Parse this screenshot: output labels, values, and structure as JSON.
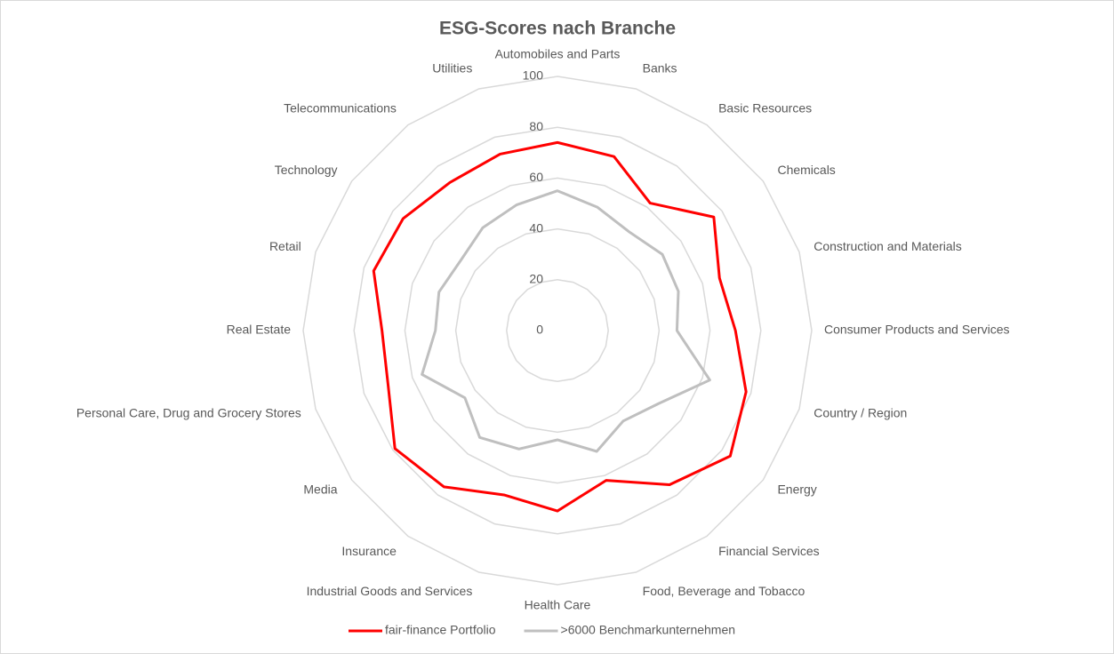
{
  "chart_data": {
    "type": "radar",
    "title": "ESG-Scores nach Branche",
    "categories": [
      "Automobiles and Parts",
      "Banks",
      "Basic Resources",
      "Chemicals",
      "Construction and Materials",
      "Consumer Products and Services",
      "Country / Region",
      "Energy",
      "Financial Services",
      "Food, Beverage and Tobacco",
      "Health Care",
      "Industrial Goods and Services",
      "Insurance",
      "Media",
      "Personal Care, Drug and Grocery Stores",
      "Real Estate",
      "Retail",
      "Technology",
      "Telecommunications",
      "Utilities"
    ],
    "series": [
      {
        "name": "fair-finance Portfolio",
        "color": "#ff0000",
        "values": [
          74,
          72,
          62,
          76,
          67,
          70,
          78,
          84,
          75,
          62,
          71,
          68,
          76,
          79,
          70,
          69,
          76,
          75,
          72,
          73
        ]
      },
      {
        "name": ">6000 Benchmarkunternehmen",
        "color": "#bfbfbf",
        "values": [
          55,
          51,
          48,
          51,
          50,
          47,
          63,
          49,
          44,
          50,
          43,
          49,
          52,
          45,
          56,
          48,
          49,
          47,
          50,
          52
        ]
      }
    ],
    "ylim": [
      0,
      100
    ],
    "yticks": [
      0,
      20,
      40,
      60,
      80,
      100
    ],
    "grid": true,
    "legend": "bottom"
  }
}
